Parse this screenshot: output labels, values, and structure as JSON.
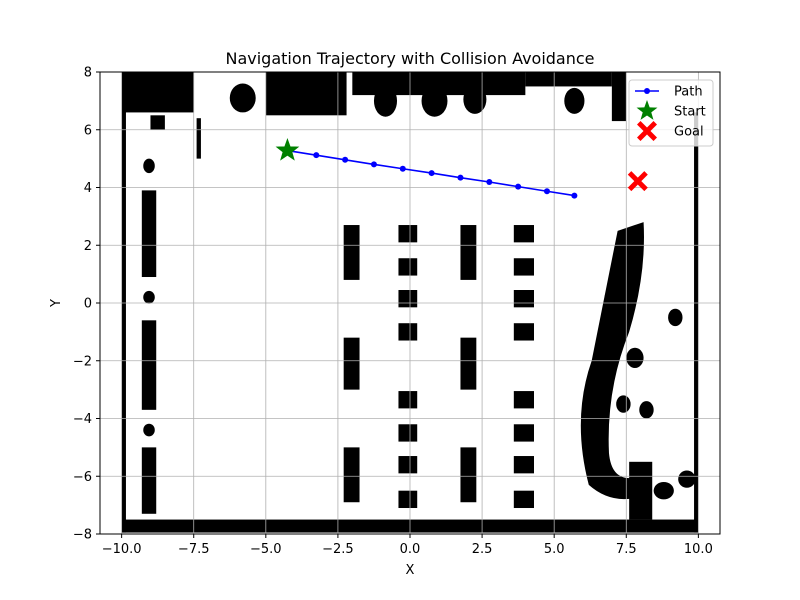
{
  "chart_data": {
    "type": "line",
    "title": "Navigation Trajectory with Collision Avoidance",
    "xlabel": "X",
    "ylabel": "Y",
    "xlim": [
      -10.75,
      10.75
    ],
    "ylim": [
      -8,
      8
    ],
    "xticks": [
      -10.0,
      -7.5,
      -5.0,
      -2.5,
      0.0,
      2.5,
      5.0,
      7.5,
      10.0
    ],
    "xtick_labels": [
      "−10.0",
      "−7.5",
      "−5.0",
      "−2.5",
      "0.0",
      "2.5",
      "5.0",
      "7.5",
      "10.0"
    ],
    "yticks": [
      -8,
      -6,
      -4,
      -2,
      0,
      2,
      4,
      6,
      8
    ],
    "ytick_labels": [
      "−8",
      "−6",
      "−4",
      "−2",
      "0",
      "2",
      "4",
      "6",
      "8"
    ],
    "grid": true,
    "legend_position": "top-right",
    "series": [
      {
        "name": "Path",
        "color": "#0000ff",
        "marker": "circle",
        "x": [
          -4.25,
          -3.25,
          -2.25,
          -1.25,
          -0.25,
          0.75,
          1.75,
          2.75,
          3.75,
          4.75,
          5.7
        ],
        "y": [
          5.28,
          5.12,
          4.96,
          4.8,
          4.65,
          4.5,
          4.34,
          4.19,
          4.03,
          3.87,
          3.72
        ]
      }
    ],
    "start": {
      "name": "Start",
      "x": -4.25,
      "y": 5.28,
      "color": "#008000",
      "marker": "star"
    },
    "goal": {
      "name": "Goal",
      "x": 7.9,
      "y": 4.22,
      "color": "#ff0000",
      "marker": "x"
    },
    "background_map": {
      "description_type": "occupancy-map",
      "obstacle_color": "#000000",
      "free_color": "#ffffff"
    }
  }
}
